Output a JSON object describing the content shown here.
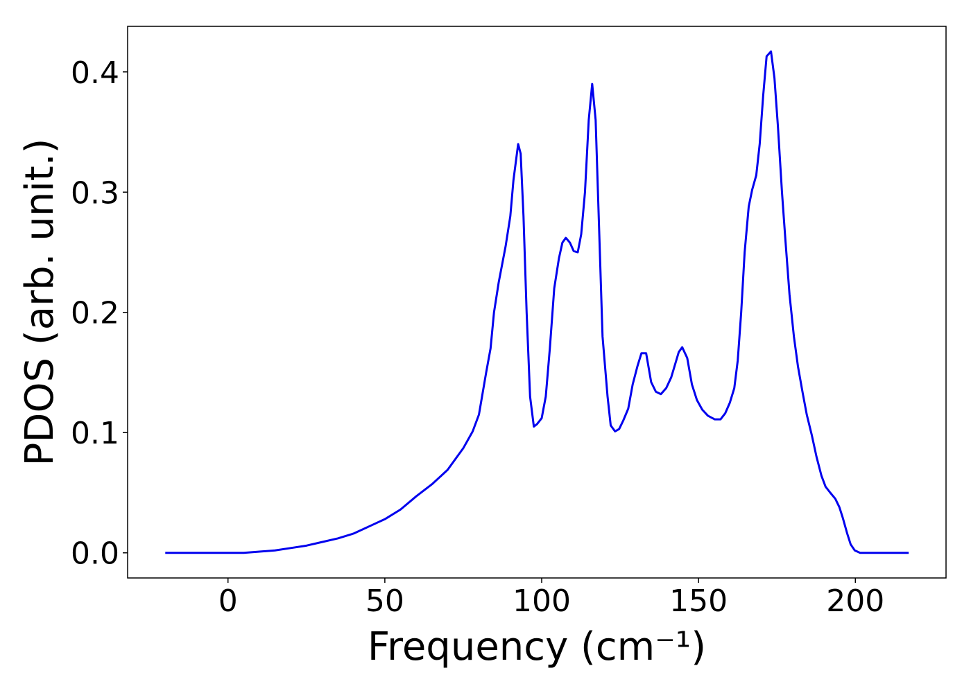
{
  "chart_data": {
    "type": "line",
    "xlabel": "Frequency (cm⁻¹)",
    "ylabel": "PDOS (arb. unit.)",
    "xlim": [
      -32,
      228.9
    ],
    "ylim": [
      -0.0209,
      0.4379
    ],
    "xticks": [
      0,
      50,
      100,
      150,
      200
    ],
    "yticks": [
      {
        "value": 0,
        "label": "0.0"
      },
      {
        "value": 0.1,
        "label": "0.1"
      },
      {
        "value": 0.2,
        "label": "0.2"
      },
      {
        "value": 0.3,
        "label": "0.3"
      },
      {
        "value": 0.4,
        "label": "0.4"
      }
    ],
    "grid": false,
    "x": [
      -20,
      -10,
      0,
      5,
      10,
      15,
      20,
      25,
      30,
      35,
      40,
      45,
      50,
      55,
      60,
      65,
      70,
      75,
      78,
      80,
      82.3,
      83.7,
      84.8,
      86.3,
      88.5,
      90,
      91,
      92.5,
      93.3,
      94.2,
      95.2,
      96.3,
      97.5,
      98.5,
      100,
      101.3,
      102.6,
      104,
      105.5,
      106.6,
      107.7,
      109,
      110.2,
      111.5,
      112.6,
      113.8,
      115,
      116.1,
      117.2,
      118.3,
      119.4,
      121,
      122,
      123.4,
      124.7,
      126,
      127.6,
      129,
      130.5,
      131.8,
      133.3,
      134.9,
      136.4,
      138,
      139.7,
      141.3,
      143.7,
      144.8,
      146.4,
      147.9,
      149.5,
      151.2,
      153,
      155.2,
      157,
      158.5,
      160,
      161.4,
      162.5,
      163.6,
      164.7,
      166,
      167.1,
      168.4,
      169.5,
      170.6,
      171.7,
      173.1,
      174.2,
      175.3,
      176.6,
      177.7,
      179,
      180.4,
      181.7,
      183.2,
      184.5,
      186.1,
      187.6,
      189.2,
      190.5,
      192,
      193.6,
      194.9,
      196,
      197.4,
      198.5,
      199.8,
      201.5,
      205,
      210,
      217
    ],
    "series": [
      {
        "name": "PDOS",
        "color": "#0000ee",
        "values": [
          0,
          0,
          0,
          0,
          0.001,
          0.002,
          0.004,
          0.006,
          0.009,
          0.012,
          0.016,
          0.022,
          0.028,
          0.036,
          0.047,
          0.057,
          0.069,
          0.087,
          0.101,
          0.115,
          0.15,
          0.17,
          0.2,
          0.225,
          0.255,
          0.28,
          0.31,
          0.34,
          0.332,
          0.28,
          0.2,
          0.13,
          0.105,
          0.107,
          0.112,
          0.13,
          0.17,
          0.22,
          0.245,
          0.258,
          0.262,
          0.258,
          0.251,
          0.25,
          0.265,
          0.3,
          0.36,
          0.39,
          0.36,
          0.27,
          0.18,
          0.13,
          0.106,
          0.101,
          0.103,
          0.11,
          0.12,
          0.14,
          0.155,
          0.166,
          0.166,
          0.142,
          0.134,
          0.132,
          0.137,
          0.146,
          0.167,
          0.171,
          0.162,
          0.14,
          0.127,
          0.119,
          0.114,
          0.111,
          0.111,
          0.116,
          0.125,
          0.137,
          0.16,
          0.2,
          0.25,
          0.288,
          0.302,
          0.314,
          0.34,
          0.38,
          0.413,
          0.417,
          0.395,
          0.355,
          0.3,
          0.26,
          0.215,
          0.18,
          0.155,
          0.133,
          0.115,
          0.098,
          0.08,
          0.064,
          0.055,
          0.05,
          0.045,
          0.038,
          0.029,
          0.016,
          0.007,
          0.002,
          0,
          0,
          0,
          0
        ]
      }
    ]
  }
}
